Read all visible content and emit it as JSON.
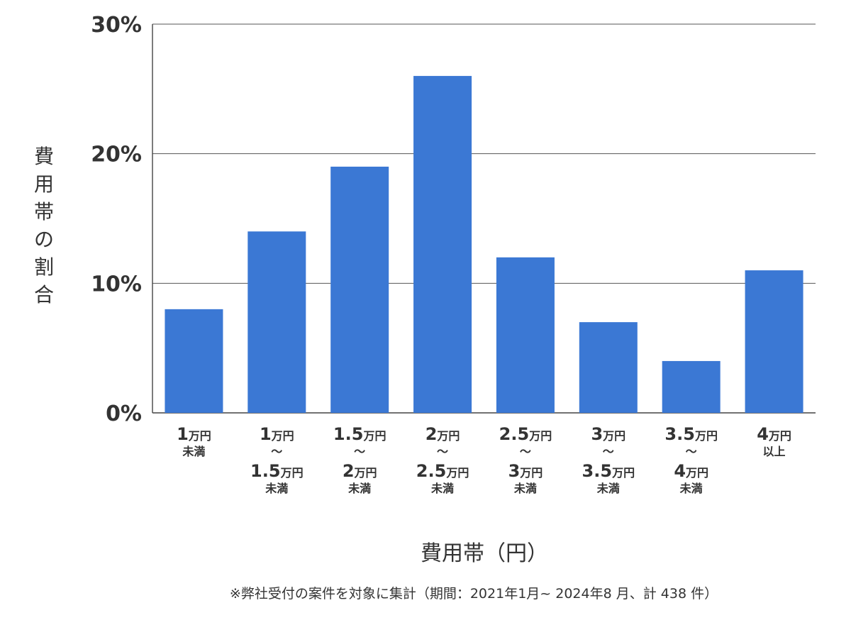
{
  "chart_data": {
    "type": "bar",
    "categories": [
      "1万円未満",
      "1万円〜1.5万円未満",
      "1.5万円〜2万円未満",
      "2万円〜2.5万円未満",
      "2.5万円〜3万円未満",
      "3万円〜3.5万円未満",
      "3.5万円〜4万円未満",
      "4万円以上"
    ],
    "category_label_lines": [
      [
        {
          "t": "1",
          "s": "big"
        },
        {
          "t": "万円",
          "s": "mid"
        },
        {
          "br": 1
        },
        {
          "t": "未満",
          "s": "small"
        }
      ],
      [
        {
          "t": "1",
          "s": "big"
        },
        {
          "t": "万円",
          "s": "mid"
        },
        {
          "br": 1
        },
        {
          "t": "〜",
          "s": "small"
        },
        {
          "br": 1
        },
        {
          "t": "1.5",
          "s": "big"
        },
        {
          "t": "万円",
          "s": "mid"
        },
        {
          "br": 1
        },
        {
          "t": "未満",
          "s": "small"
        }
      ],
      [
        {
          "t": "1.5",
          "s": "big"
        },
        {
          "t": "万円",
          "s": "mid"
        },
        {
          "br": 1
        },
        {
          "t": "〜",
          "s": "small"
        },
        {
          "br": 1
        },
        {
          "t": "2",
          "s": "big"
        },
        {
          "t": "万円",
          "s": "mid"
        },
        {
          "br": 1
        },
        {
          "t": "未満",
          "s": "small"
        }
      ],
      [
        {
          "t": "2",
          "s": "big"
        },
        {
          "t": "万円",
          "s": "mid"
        },
        {
          "br": 1
        },
        {
          "t": "〜",
          "s": "small"
        },
        {
          "br": 1
        },
        {
          "t": "2.5",
          "s": "big"
        },
        {
          "t": "万円",
          "s": "mid"
        },
        {
          "br": 1
        },
        {
          "t": "未満",
          "s": "small"
        }
      ],
      [
        {
          "t": "2.5",
          "s": "big"
        },
        {
          "t": "万円",
          "s": "mid"
        },
        {
          "br": 1
        },
        {
          "t": "〜",
          "s": "small"
        },
        {
          "br": 1
        },
        {
          "t": "3",
          "s": "big"
        },
        {
          "t": "万円",
          "s": "mid"
        },
        {
          "br": 1
        },
        {
          "t": "未満",
          "s": "small"
        }
      ],
      [
        {
          "t": "3",
          "s": "big"
        },
        {
          "t": "万円",
          "s": "mid"
        },
        {
          "br": 1
        },
        {
          "t": "〜",
          "s": "small"
        },
        {
          "br": 1
        },
        {
          "t": "3.5",
          "s": "big"
        },
        {
          "t": "万円",
          "s": "mid"
        },
        {
          "br": 1
        },
        {
          "t": "未満",
          "s": "small"
        }
      ],
      [
        {
          "t": "3.5",
          "s": "big"
        },
        {
          "t": "万円",
          "s": "mid"
        },
        {
          "br": 1
        },
        {
          "t": "〜",
          "s": "small"
        },
        {
          "br": 1
        },
        {
          "t": "4",
          "s": "big"
        },
        {
          "t": "万円",
          "s": "mid"
        },
        {
          "br": 1
        },
        {
          "t": "未満",
          "s": "small"
        }
      ],
      [
        {
          "t": "4",
          "s": "big"
        },
        {
          "t": "万円",
          "s": "mid"
        },
        {
          "br": 1
        },
        {
          "t": "以上",
          "s": "small"
        }
      ]
    ],
    "values": [
      8,
      14,
      19,
      26,
      12,
      7,
      4,
      11
    ],
    "value_unit": "%",
    "ylim": [
      0,
      30
    ],
    "yticks": [
      0,
      10,
      20,
      30
    ],
    "ytick_labels": [
      "0%",
      "10%",
      "20%",
      "30%"
    ],
    "xlabel": "費用帯（円）",
    "ylabel": "費用帯の割合",
    "grid": true,
    "bar_color": "#3b78d4",
    "note": "※弊社受付の案件を対象に集計（期間：2021年1月~ 2024年8 月、計 438 件）"
  }
}
